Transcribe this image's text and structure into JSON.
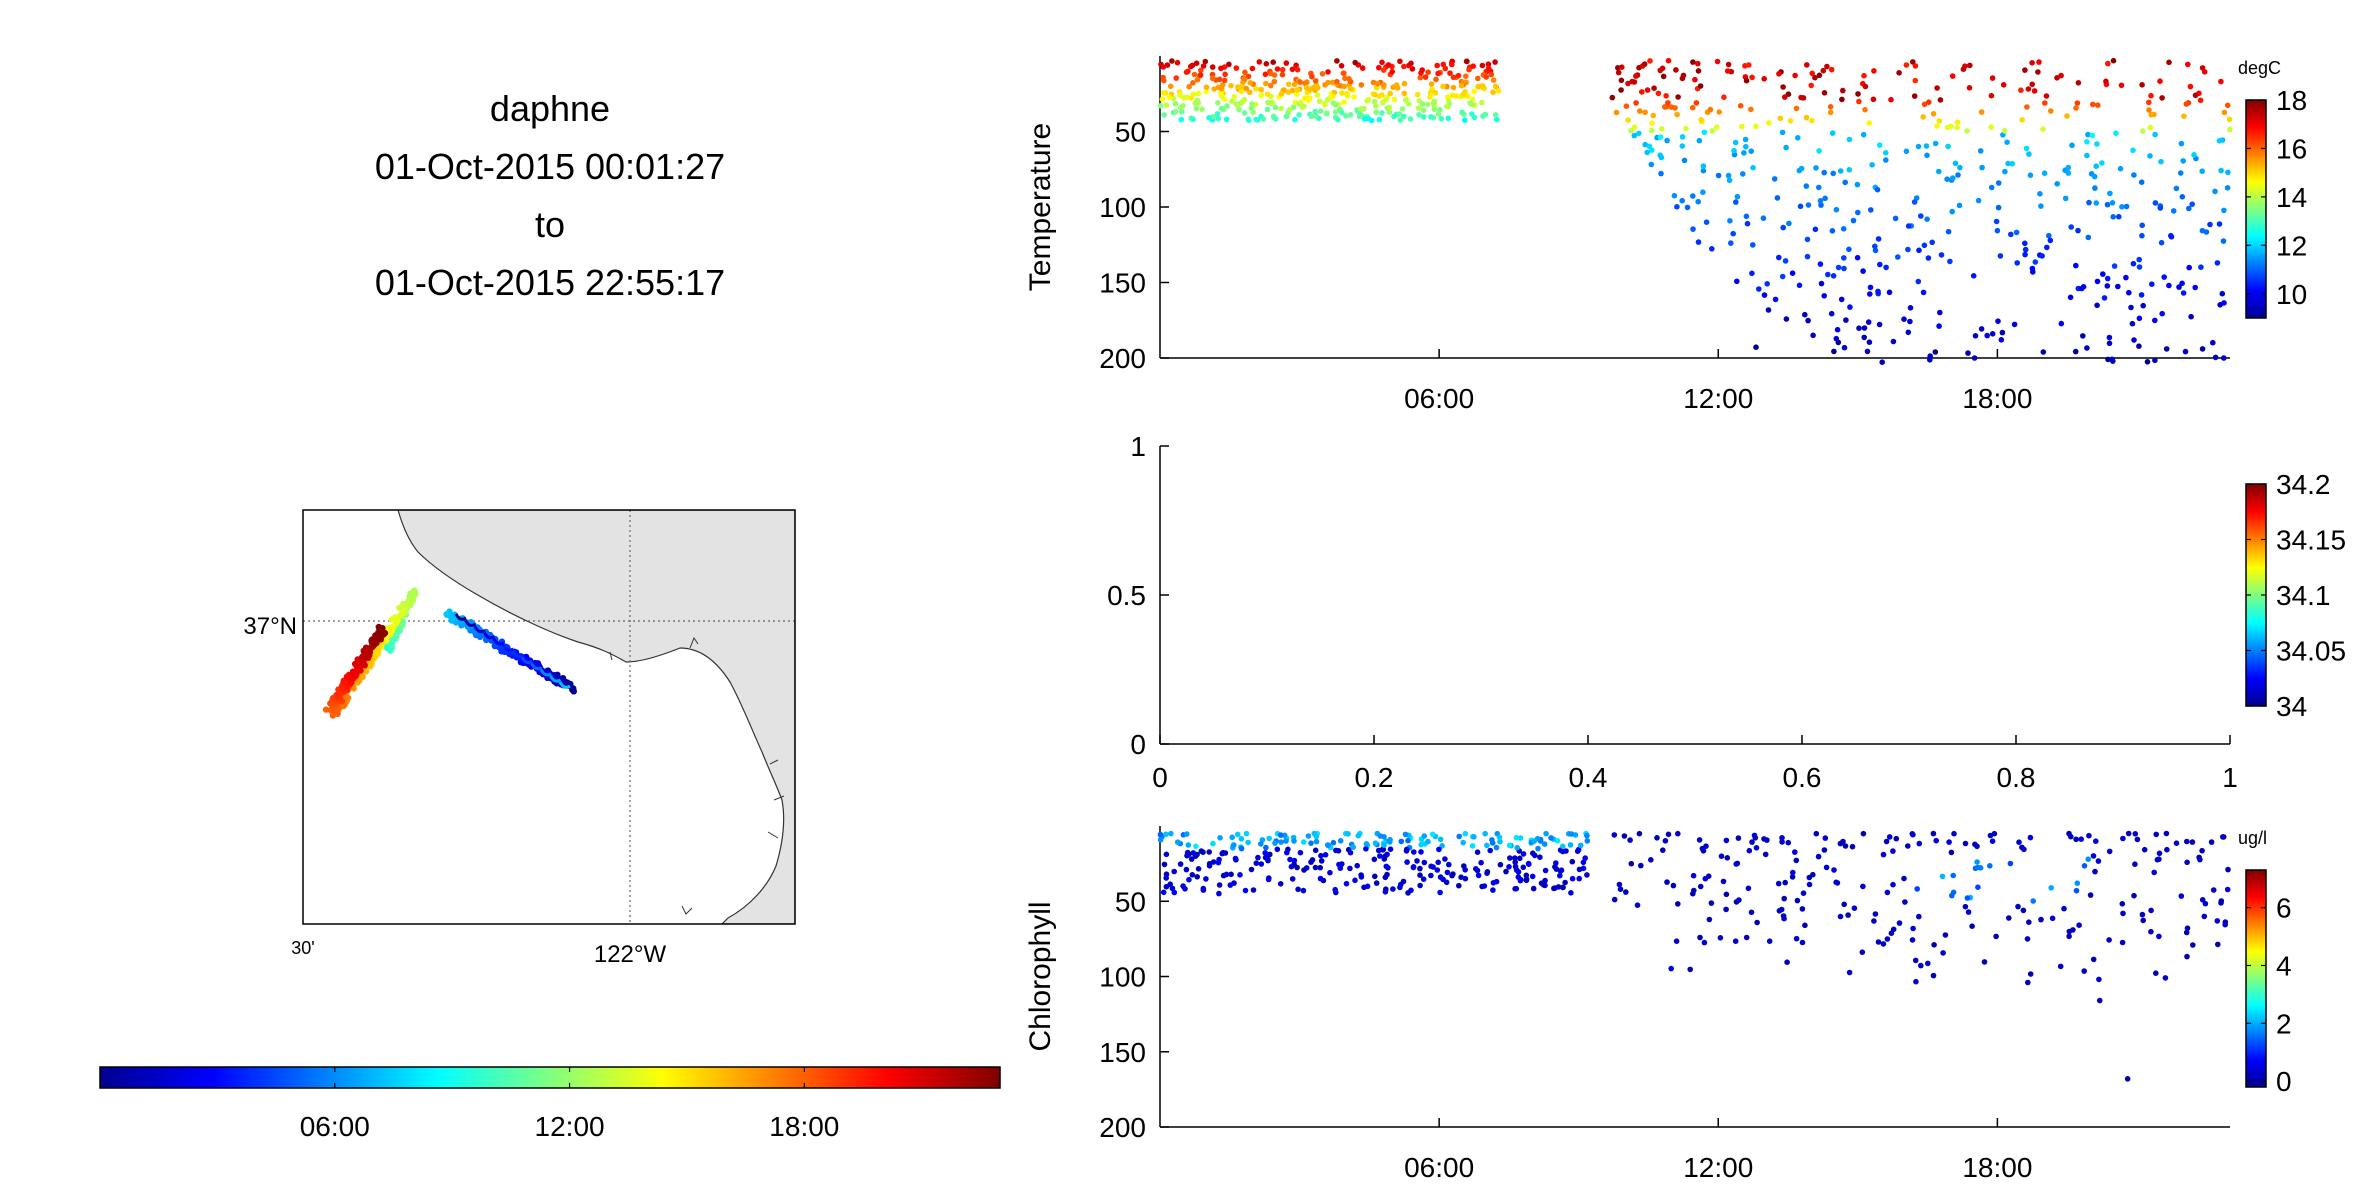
{
  "header": {
    "platform": "daphne",
    "start": "01-Oct-2015 00:01:27",
    "connector": "to",
    "end": "01-Oct-2015 22:55:17"
  },
  "colors": {
    "jet": [
      "#00008f",
      "#0000ff",
      "#0080ff",
      "#00ffff",
      "#80ff80",
      "#ffff00",
      "#ff8000",
      "#ff0000",
      "#800000"
    ],
    "land": "#e3e3e3",
    "grid": "#777777"
  },
  "map": {
    "lat_label": "37°N",
    "lon_label": "122°W",
    "lon_minor_label": "30'",
    "track_note": "colored by hour of day"
  },
  "time_colorbar": {
    "ticks": [
      "06:00",
      "12:00",
      "18:00"
    ]
  },
  "chart_data": [
    {
      "type": "scatter",
      "title": "",
      "ylabel": "Temperature",
      "xlabel": "",
      "x_unit": "hours",
      "xlim": [
        0,
        23
      ],
      "xticks": [
        "06:00",
        "12:00",
        "18:00"
      ],
      "ylim": [
        200,
        0
      ],
      "yticks": [
        50,
        100,
        150,
        200
      ],
      "colorbar": {
        "unit": "degC",
        "range": [
          9,
          18
        ],
        "ticks": [
          10,
          12,
          14,
          16,
          18
        ]
      },
      "series": [
        {
          "x_range": [
            0,
            7.3
          ],
          "depth_range": [
            2,
            45
          ],
          "value_range": [
            12.5,
            18
          ],
          "note": "shallow profiles, warm layer above ~45 m"
        },
        {
          "x_range": [
            9.7,
            23
          ],
          "depth_range": [
            2,
            200
          ],
          "value_range": [
            9.5,
            18
          ],
          "note": "deeper profiles, cooling with depth"
        }
      ]
    },
    {
      "type": "scatter",
      "title": "",
      "ylabel": "",
      "xlabel": "",
      "xlim": [
        0,
        1
      ],
      "xticks": [
        "0",
        "0.2",
        "0.4",
        "0.6",
        "0.8",
        "1"
      ],
      "ylim": [
        0,
        1
      ],
      "yticks": [
        "0",
        "0.5",
        "1"
      ],
      "colorbar": {
        "unit": "",
        "range": [
          34,
          34.2
        ],
        "ticks": [
          "34",
          "34.05",
          "34.1",
          "34.15",
          "34.2"
        ]
      },
      "series": []
    },
    {
      "type": "scatter",
      "title": "",
      "ylabel": "Chlorophyll",
      "xlabel": "",
      "xlim": [
        0,
        23
      ],
      "xticks": [
        "06:00",
        "12:00",
        "18:00"
      ],
      "ylim": [
        200,
        0
      ],
      "yticks": [
        50,
        100,
        150,
        200
      ],
      "colorbar": {
        "unit": "ug/l",
        "range": [
          -0.2,
          7.3
        ],
        "ticks": [
          0,
          2,
          4,
          6
        ]
      },
      "series": [
        {
          "x_range": [
            0,
            9.2
          ],
          "depth_range": [
            2,
            55
          ],
          "value_range": [
            0,
            2.6
          ],
          "note": "higher near surface"
        },
        {
          "x_range": [
            9.7,
            23
          ],
          "depth_range": [
            2,
            170
          ],
          "value_range": [
            0,
            2.2
          ],
          "note": "sparse, low values"
        }
      ]
    }
  ]
}
